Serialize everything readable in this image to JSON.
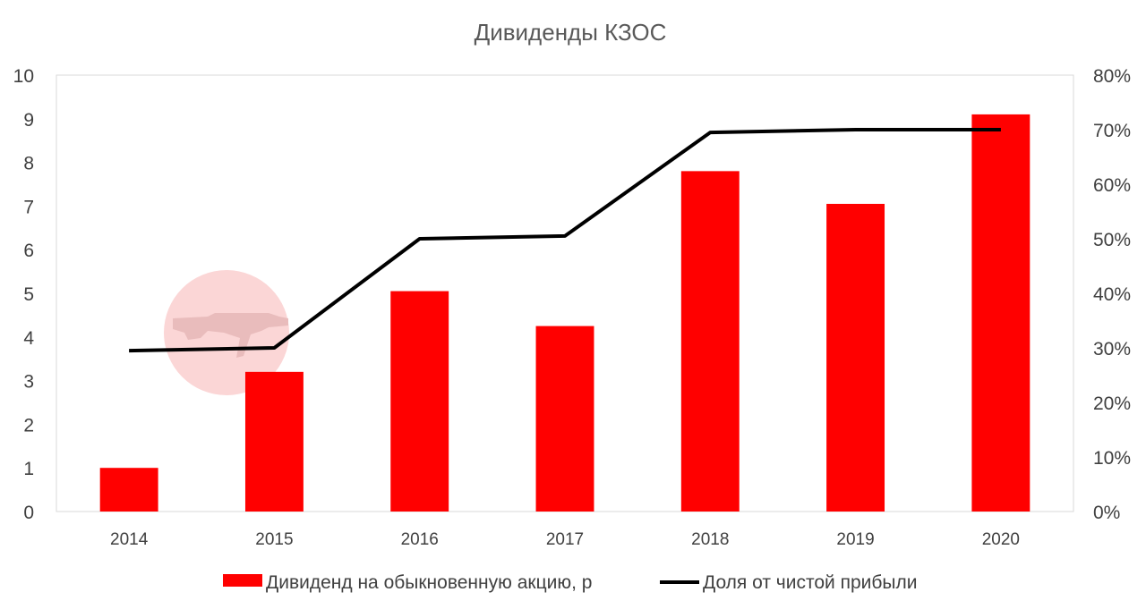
{
  "chart_data": {
    "type": "bar",
    "title": "Дивиденды КЗОС",
    "categories": [
      "2014",
      "2015",
      "2016",
      "2017",
      "2018",
      "2019",
      "2020"
    ],
    "series": [
      {
        "name": "Дивиденд на обыкновенную акцию, р",
        "type": "bar",
        "axis": "left",
        "color": "#ff0000",
        "values": [
          1.0,
          3.2,
          5.05,
          4.25,
          7.8,
          7.05,
          9.1
        ]
      },
      {
        "name": "Доля от чистой прибыли",
        "type": "line",
        "axis": "right",
        "color": "#000000",
        "values": [
          0.295,
          0.3,
          0.5,
          0.505,
          0.695,
          0.7,
          0.7
        ]
      }
    ],
    "y_left": {
      "min": 0,
      "max": 10,
      "step": 1,
      "ticks": [
        "0",
        "1",
        "2",
        "3",
        "4",
        "5",
        "6",
        "7",
        "8",
        "9",
        "10"
      ]
    },
    "y_right": {
      "min": 0,
      "max": 0.8,
      "step": 0.1,
      "ticks": [
        "0%",
        "10%",
        "20%",
        "30%",
        "40%",
        "50%",
        "60%",
        "70%",
        "80%"
      ]
    },
    "grid": false,
    "legend_position": "bottom"
  },
  "watermark": {
    "icon": "rifle-icon",
    "color": "#f9d5d5"
  }
}
